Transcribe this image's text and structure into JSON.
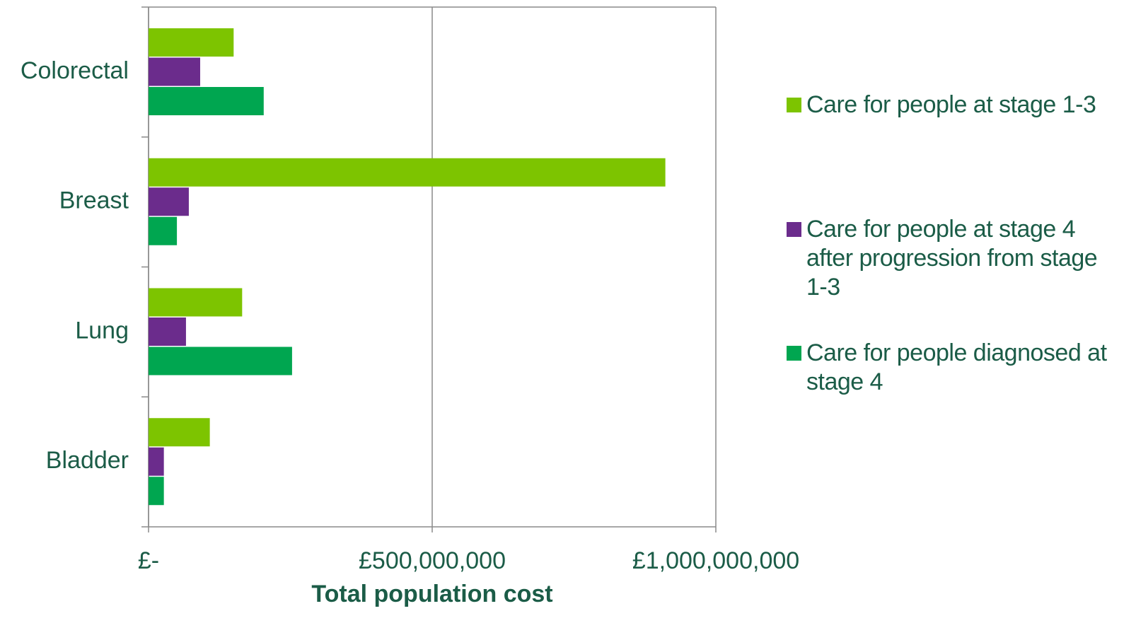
{
  "chart_data": {
    "type": "bar",
    "orientation": "horizontal",
    "x_label": "Total population cost",
    "categories": [
      "Colorectal",
      "Breast",
      "Lung",
      "Bladder"
    ],
    "series": [
      {
        "name": "Care for people at stage 1-3",
        "color": "#7dc400",
        "values": [
          150000000,
          911000000,
          165000000,
          108000000
        ]
      },
      {
        "name": "Care for people at stage 4 after progression from stage 1-3",
        "color": "#6b2c8c",
        "values": [
          91000000,
          71000000,
          66000000,
          27000000
        ]
      },
      {
        "name": "Care for people diagnosed at stage 4",
        "color": "#00a650",
        "values": [
          203000000,
          50000000,
          253000000,
          27000000
        ]
      }
    ],
    "xlim": [
      0,
      1000000000
    ],
    "xticks": [
      {
        "value": 0,
        "label": "£-"
      },
      {
        "value": 500000000,
        "label": "£500,000,000"
      },
      {
        "value": 1000000000,
        "label": "£1,000,000,000"
      }
    ],
    "grid": true,
    "legend": "right"
  }
}
